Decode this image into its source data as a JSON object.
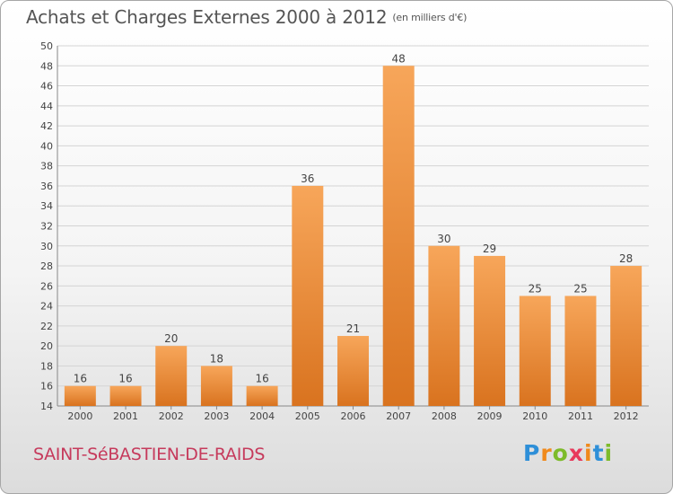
{
  "title": "Achats et Charges Externes 2000 à 2012",
  "unit": "(en milliers d'€)",
  "commune": "SAINT-SéBASTIEN-DE-RAIDS",
  "logo": {
    "letters": [
      "P",
      "r",
      "o",
      "x",
      "i",
      "t",
      "i"
    ],
    "colors": [
      "#2e8fd8",
      "#f08a1c",
      "#7dbb2a",
      "#e83a5c",
      "#f08a1c",
      "#2e8fd8",
      "#7dbb2a"
    ]
  },
  "colors": {
    "bar_light": "#f7a65a",
    "bar_dark": "#d9731f",
    "grid": "#d4d4d4",
    "text": "#444444"
  },
  "chart_data": {
    "type": "bar",
    "categories": [
      "2000",
      "2001",
      "2002",
      "2003",
      "2004",
      "2005",
      "2006",
      "2007",
      "2008",
      "2009",
      "2010",
      "2011",
      "2012"
    ],
    "values": [
      16,
      16,
      20,
      18,
      16,
      36,
      21,
      48,
      30,
      29,
      25,
      25,
      28
    ],
    "ylim": [
      14,
      50
    ],
    "yticks": [
      14,
      16,
      18,
      20,
      22,
      24,
      26,
      28,
      30,
      32,
      34,
      36,
      38,
      40,
      42,
      44,
      46,
      48,
      50
    ],
    "grid": true,
    "xlabel": "",
    "ylabel": ""
  }
}
